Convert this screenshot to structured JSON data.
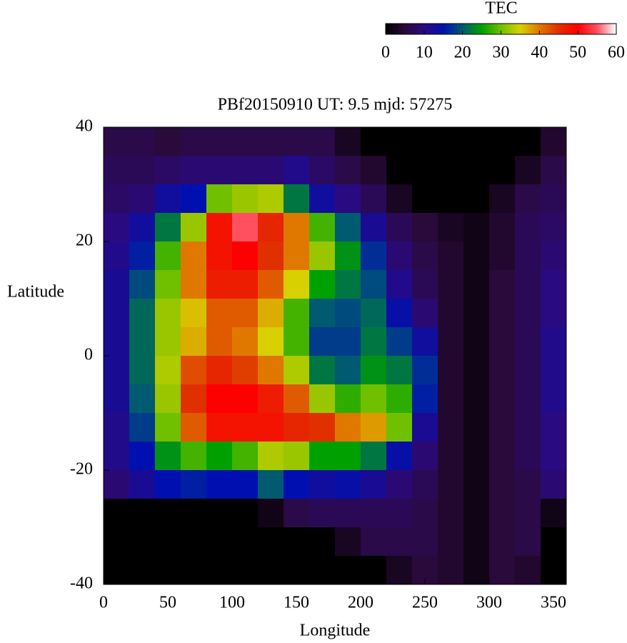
{
  "chart_data": {
    "type": "heatmap",
    "title": "PBf20150910  UT: 9.5  mjd: 57275",
    "x_label": "Longitude",
    "y_label": "Latitude",
    "xlim": [
      0,
      360
    ],
    "xticks": [
      0,
      50,
      100,
      150,
      200,
      250,
      300,
      350
    ],
    "ylim": [
      -40,
      40
    ],
    "yticks": [
      -40,
      -20,
      0,
      20,
      40
    ],
    "xbins": [
      0,
      20,
      40,
      60,
      80,
      100,
      120,
      140,
      160,
      180,
      200,
      220,
      240,
      260,
      280,
      300,
      320,
      340,
      360
    ],
    "ybins": [
      40,
      35,
      30,
      25,
      20,
      15,
      10,
      5,
      0,
      -5,
      -10,
      -15,
      -20,
      -25,
      -30,
      -35,
      -40
    ],
    "values": [
      [
        6,
        6,
        5,
        6,
        6,
        6,
        6,
        6,
        6,
        3,
        0,
        0,
        0,
        0,
        0,
        0,
        0,
        4
      ],
      [
        7,
        7,
        8,
        9,
        9,
        9,
        9,
        11,
        8,
        6,
        4,
        0,
        0,
        0,
        0,
        0,
        3,
        6
      ],
      [
        8,
        9,
        13,
        15,
        30,
        32,
        33,
        22,
        13,
        10,
        7,
        3,
        0,
        0,
        0,
        3,
        6,
        7
      ],
      [
        10,
        13,
        22,
        32,
        48,
        55,
        46,
        40,
        28,
        20,
        12,
        7,
        5,
        3,
        2,
        4,
        7,
        8
      ],
      [
        11,
        16,
        28,
        40,
        48,
        50,
        45,
        40,
        32,
        24,
        17,
        9,
        6,
        4,
        2,
        4,
        7,
        9
      ],
      [
        12,
        19,
        30,
        40,
        47,
        47,
        42,
        35,
        25,
        22,
        19,
        11,
        7,
        4,
        2,
        5,
        7,
        10
      ],
      [
        12,
        21,
        32,
        36,
        42,
        42,
        37,
        28,
        20,
        19,
        21,
        14,
        9,
        4,
        2,
        5,
        7,
        10
      ],
      [
        12,
        21,
        32,
        37,
        42,
        40,
        35,
        28,
        18,
        18,
        22,
        18,
        13,
        4,
        2,
        5,
        7,
        11
      ],
      [
        12,
        21,
        33,
        43,
        46,
        44,
        40,
        33,
        22,
        20,
        24,
        22,
        17,
        4,
        2,
        5,
        7,
        11
      ],
      [
        12,
        20,
        32,
        45,
        50,
        50,
        47,
        42,
        32,
        27,
        30,
        27,
        16,
        4,
        2,
        5,
        7,
        11
      ],
      [
        11,
        18,
        30,
        42,
        48,
        48,
        48,
        46,
        45,
        40,
        38,
        30,
        12,
        4,
        2,
        5,
        7,
        10
      ],
      [
        11,
        15,
        24,
        28,
        25,
        28,
        33,
        32,
        25,
        25,
        22,
        14,
        9,
        4,
        2,
        5,
        7,
        10
      ],
      [
        9,
        12,
        15,
        16,
        15,
        15,
        20,
        15,
        13,
        14,
        12,
        9,
        7,
        4,
        2,
        5,
        6,
        9
      ],
      [
        0,
        0,
        0,
        0,
        0,
        0,
        2,
        6,
        7,
        7,
        7,
        7,
        6,
        4,
        2,
        5,
        6,
        2
      ],
      [
        0,
        0,
        0,
        0,
        0,
        0,
        0,
        0,
        0,
        3,
        6,
        6,
        6,
        4,
        2,
        5,
        6,
        0
      ],
      [
        0,
        0,
        0,
        0,
        0,
        0,
        0,
        0,
        0,
        0,
        0,
        3,
        5,
        4,
        2,
        5,
        4,
        0
      ]
    ],
    "colorbar_label": "TEC",
    "clim": [
      0,
      60
    ],
    "cticks": [
      0,
      10,
      20,
      30,
      40,
      50,
      60
    ],
    "colormap": [
      "#000000",
      "#2a0a3a",
      "#2a0a80",
      "#0010b0",
      "#005a70",
      "#00a000",
      "#70c000",
      "#d8d000",
      "#e07800",
      "#e03000",
      "#ff0000",
      "#ff5060",
      "#ffffff"
    ]
  }
}
